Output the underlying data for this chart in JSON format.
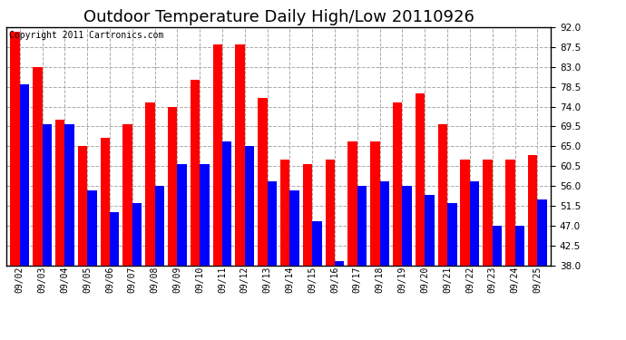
{
  "title": "Outdoor Temperature Daily High/Low 20110926",
  "copyright": "Copyright 2011 Cartronics.com",
  "dates": [
    "09/02",
    "09/03",
    "09/04",
    "09/05",
    "09/06",
    "09/07",
    "09/08",
    "09/09",
    "09/10",
    "09/11",
    "09/12",
    "09/13",
    "09/14",
    "09/15",
    "09/16",
    "09/17",
    "09/18",
    "09/19",
    "09/20",
    "09/21",
    "09/22",
    "09/23",
    "09/24",
    "09/25"
  ],
  "highs": [
    91,
    83,
    71,
    65,
    67,
    70,
    75,
    74,
    80,
    88,
    88,
    76,
    62,
    61,
    62,
    66,
    66,
    75,
    77,
    70,
    62,
    62,
    62,
    63
  ],
  "lows": [
    79,
    70,
    70,
    55,
    50,
    52,
    56,
    61,
    61,
    66,
    65,
    57,
    55,
    48,
    39,
    56,
    57,
    56,
    54,
    52,
    57,
    47,
    47,
    53
  ],
  "bar_width": 0.42,
  "high_color": "#ff0000",
  "low_color": "#0000ff",
  "background_color": "#ffffff",
  "grid_color": "#aaaaaa",
  "ylim_min": 38.0,
  "ylim_max": 92.0,
  "yticks": [
    38.0,
    42.5,
    47.0,
    51.5,
    56.0,
    60.5,
    65.0,
    69.5,
    74.0,
    78.5,
    83.0,
    87.5,
    92.0
  ],
  "title_fontsize": 13,
  "tick_fontsize": 7.5,
  "xtick_fontsize": 7,
  "copyright_fontsize": 7
}
